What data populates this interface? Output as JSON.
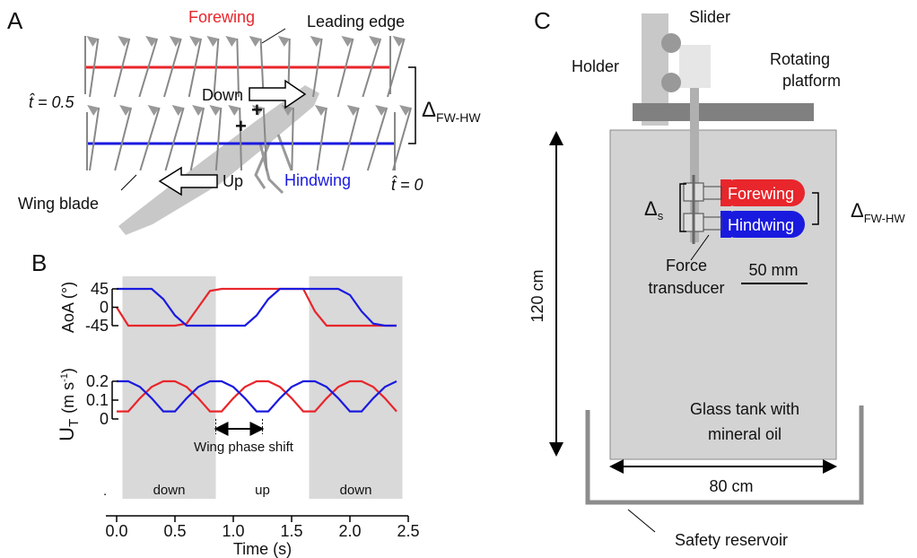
{
  "panel_a": {
    "label": "A",
    "forewing": "Forewing",
    "leading_edge": "Leading edge",
    "t_half": "t̂ = 0.5",
    "down": "Down",
    "up": "Up",
    "delta": "Δ",
    "delta_sub": "FW-HW",
    "hindwing": "Hindwing",
    "t_zero": "t̂ = 0",
    "wing_blade": "Wing blade"
  },
  "panel_b": {
    "label": "B"
  },
  "chart_data": [
    {
      "type": "line",
      "ylabel": "AoA (°)",
      "xlim": [
        0,
        2.5
      ],
      "ylim": [
        -45,
        45
      ],
      "yticks": [
        45,
        0,
        -45
      ],
      "x": [
        0,
        0.1,
        0.2,
        0.3,
        0.4,
        0.5,
        0.6,
        0.7,
        0.8,
        0.9,
        1.0,
        1.1,
        1.2,
        1.3,
        1.4,
        1.5,
        1.6,
        1.7,
        1.8,
        1.9,
        2.0,
        2.1,
        2.2,
        2.3,
        2.4
      ],
      "series": [
        {
          "color": "#e8262b",
          "values": [
            0,
            -45,
            -45,
            -45,
            -45,
            -45,
            -40,
            0,
            40,
            45,
            45,
            45,
            45,
            45,
            45,
            45,
            45,
            -10,
            -45,
            -45,
            -45,
            -45,
            -45,
            -45,
            -45
          ]
        },
        {
          "color": "#1a1adf",
          "values": [
            45,
            45,
            45,
            45,
            20,
            -20,
            -45,
            -45,
            -45,
            -45,
            -45,
            -45,
            -20,
            20,
            45,
            45,
            45,
            45,
            45,
            45,
            30,
            -10,
            -40,
            -45,
            -45
          ]
        }
      ]
    },
    {
      "type": "line",
      "ylabel": {
        "main": "U",
        "sub": "T",
        "unit": "(m s",
        "sup": "-1",
        "close": ")"
      },
      "xlabel": "Time (s)",
      "xlim": [
        0,
        2.5
      ],
      "ylim": [
        0,
        0.2
      ],
      "yticks": [
        {
          "value": 0.2,
          "label": "0.2"
        },
        {
          "value": 0.1,
          "label": "0.1"
        },
        0
      ],
      "xticks": [
        {
          "value": 0,
          "label": "0.0"
        },
        {
          "value": 0.5,
          "label": "0.5"
        },
        {
          "value": 1,
          "label": "1.0"
        },
        {
          "value": 1.5,
          "label": "1.5"
        },
        {
          "value": 2,
          "label": "2.0"
        },
        2.5
      ],
      "x": [
        0,
        0.1,
        0.2,
        0.3,
        0.4,
        0.5,
        0.6,
        0.7,
        0.8,
        0.9,
        1.0,
        1.1,
        1.2,
        1.3,
        1.4,
        1.5,
        1.6,
        1.7,
        1.8,
        1.9,
        2.0,
        2.1,
        2.2,
        2.3,
        2.4
      ],
      "series": [
        {
          "color": "#e8262b",
          "values": [
            0.04,
            0.04,
            0.11,
            0.17,
            0.2,
            0.2,
            0.17,
            0.11,
            0.04,
            0.04,
            0.11,
            0.17,
            0.2,
            0.2,
            0.17,
            0.11,
            0.04,
            0.04,
            0.11,
            0.17,
            0.2,
            0.2,
            0.17,
            0.11,
            0.04
          ]
        },
        {
          "color": "#1a1adf",
          "values": [
            0.2,
            0.2,
            0.17,
            0.11,
            0.04,
            0.04,
            0.11,
            0.17,
            0.2,
            0.2,
            0.17,
            0.11,
            0.04,
            0.04,
            0.11,
            0.17,
            0.2,
            0.2,
            0.17,
            0.11,
            0.04,
            0.04,
            0.11,
            0.17,
            0.2
          ]
        }
      ],
      "phases": [
        {
          "label": "down",
          "start": 0.05,
          "end": 0.85,
          "shade": true
        },
        {
          "label": "up",
          "start": 0.85,
          "end": 1.65,
          "shade": false
        },
        {
          "label": "down",
          "start": 1.65,
          "end": 2.45,
          "shade": true
        }
      ],
      "annotation": {
        "text": "Wing phase shift",
        "start": 0.85,
        "end": 1.25
      }
    }
  ],
  "panel_c": {
    "label": "C",
    "slider": "Slider",
    "holder": "Holder",
    "platform": [
      "Rotating",
      "platform"
    ],
    "height": "120 cm",
    "delta_s": "Δ",
    "delta_s_sub": "s",
    "forewing": "Forewing",
    "hindwing": "Hindwing",
    "delta": "Δ",
    "delta_sub": "FW-HW",
    "transducer": [
      "Force",
      "transducer"
    ],
    "scale": "50 mm",
    "tank": [
      "Glass tank with",
      "mineral oil"
    ],
    "width": "80 cm",
    "reservoir": "Safety reservoir"
  }
}
